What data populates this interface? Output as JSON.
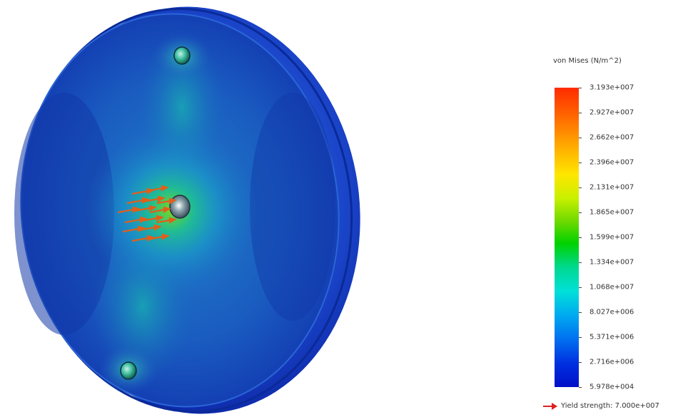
{
  "legend": {
    "title": "von Mises (N/m^2)",
    "ticks": [
      "3.193e+007",
      "2.927e+007",
      "2.662e+007",
      "2.396e+007",
      "2.131e+007",
      "1.865e+007",
      "1.599e+007",
      "1.334e+007",
      "1.068e+007",
      "8.027e+006",
      "5.371e+006",
      "2.716e+006",
      "5.978e+004"
    ],
    "max_color": "#ff2a00",
    "min_color": "#0010c8"
  },
  "yield": {
    "text": "Yield strength: 7.000e+007",
    "arrow_color": "#e02020"
  },
  "model": {
    "description_icon": "stress-plot-disc",
    "load_arrow_color": "#e0601a"
  }
}
